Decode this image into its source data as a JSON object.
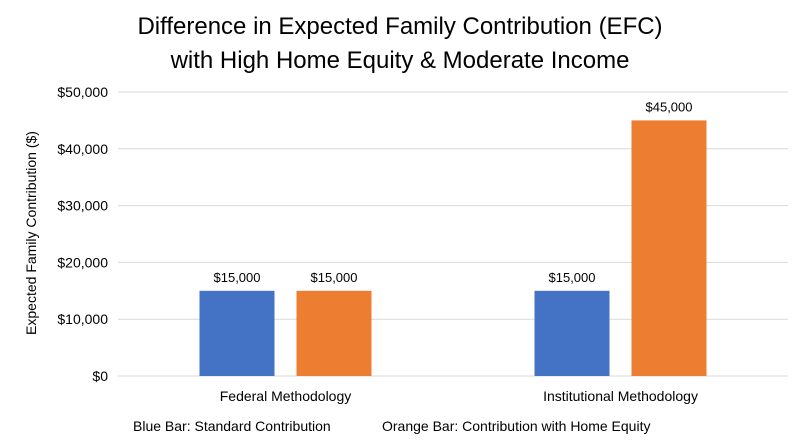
{
  "chart_data": {
    "type": "bar",
    "title_lines": [
      "Difference in Expected Family Contribution (EFC)",
      "with High Home Equity & Moderate Income"
    ],
    "xlabel": "",
    "ylabel": "Expected Family Contribution ($)",
    "categories": [
      "Federal Methodology",
      "Institutional Methodology"
    ],
    "series": [
      {
        "values": [
          15000,
          15000
        ],
        "color": "#4472C4",
        "data_labels": [
          "$15,000",
          "$15,000"
        ]
      },
      {
        "values": [
          15000,
          45000
        ],
        "color": "#ED7D31",
        "data_labels": [
          "$15,000",
          "$45,000"
        ]
      }
    ],
    "ylim": [
      0,
      50000
    ],
    "yticks": [
      {
        "value": 0,
        "label": "$0"
      },
      {
        "value": 10000,
        "label": "$10,000"
      },
      {
        "value": 20000,
        "label": "$20,000"
      },
      {
        "value": 30000,
        "label": "$30,000"
      },
      {
        "value": 40000,
        "label": "$40,000"
      },
      {
        "value": 50000,
        "label": "$50,000"
      }
    ],
    "grid": true,
    "legend": "none",
    "footnotes": [
      "Blue Bar: Standard Contribution",
      "Orange Bar: Contribution with Home Equity"
    ],
    "gridline_color": "#D9D9D9"
  }
}
